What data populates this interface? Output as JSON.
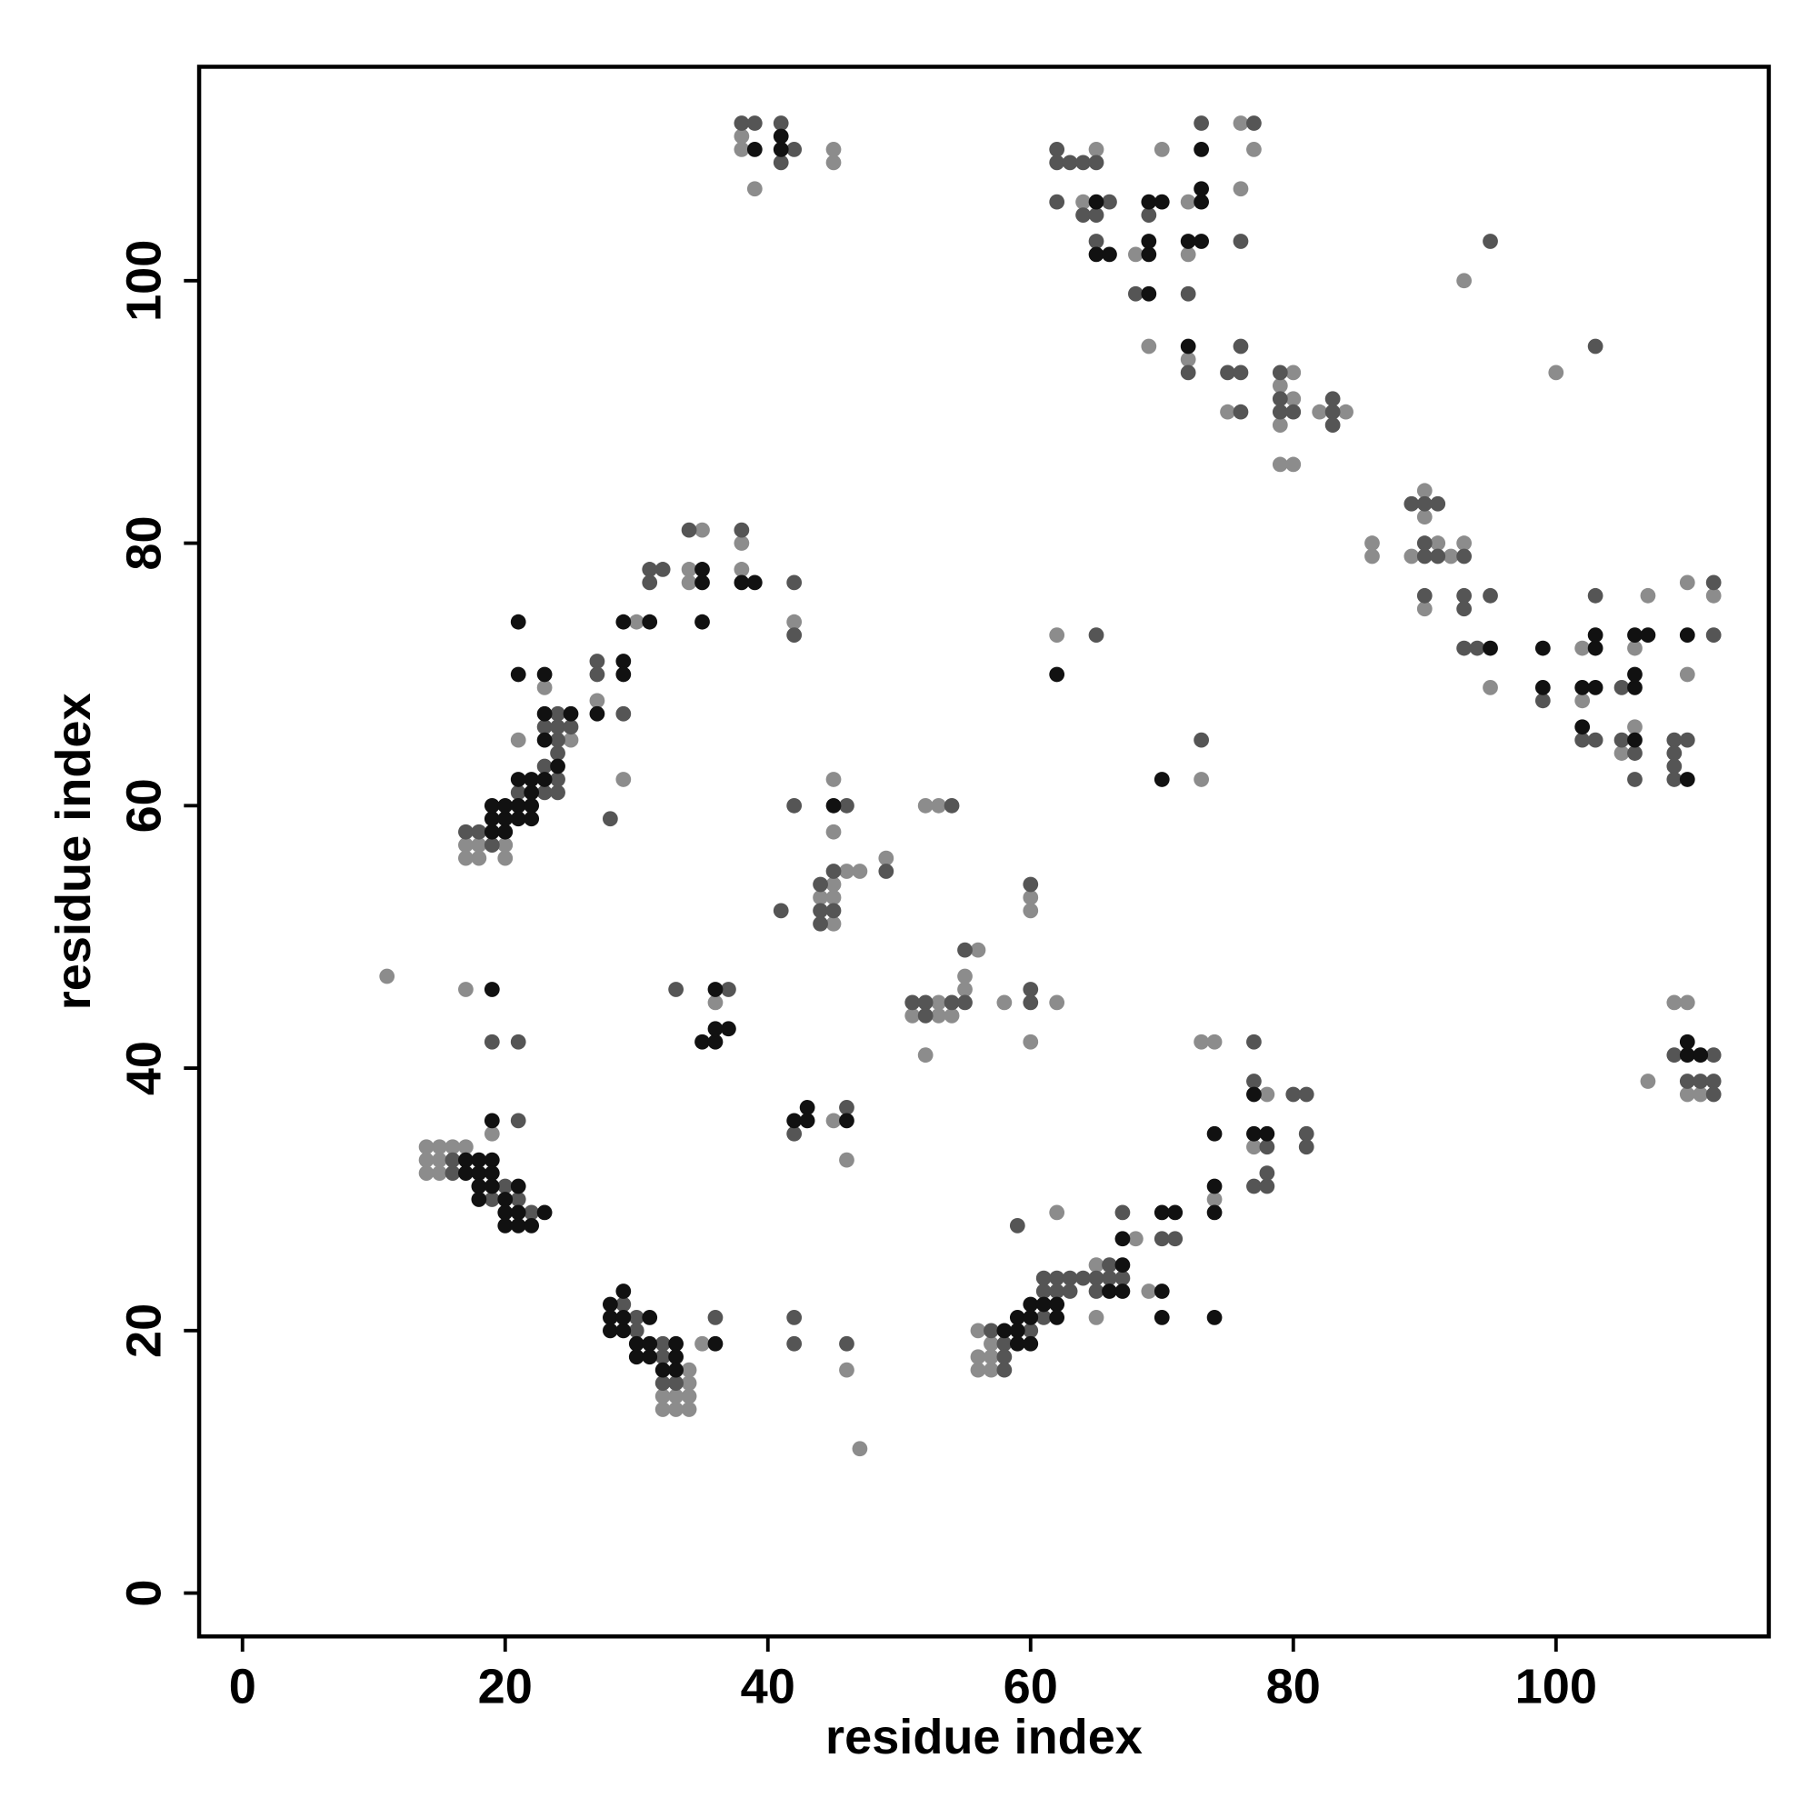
{
  "chart_data": {
    "type": "scatter",
    "xlabel": "residue index",
    "ylabel": "residue index",
    "xlim": [
      -3.3,
      116.2
    ],
    "ylim": [
      -3.3,
      116.3
    ],
    "xticks": [
      0,
      20,
      40,
      60,
      80,
      100
    ],
    "yticks": [
      0,
      20,
      40,
      60,
      80,
      100
    ],
    "grid": false,
    "series": [
      {
        "color": "#8c8c8c",
        "x": [
          38,
          38,
          39,
          45,
          45,
          65,
          64,
          68,
          70,
          72,
          76,
          76,
          77,
          72,
          69,
          72,
          75,
          80,
          79,
          80,
          79,
          79,
          80,
          82,
          84,
          93,
          100,
          86,
          86,
          90,
          90,
          91,
          89,
          92,
          93,
          90,
          95,
          102,
          102,
          105,
          106,
          106,
          107,
          110,
          110,
          112,
          109,
          110,
          110,
          111,
          107,
          17,
          18,
          17,
          18,
          20,
          20,
          25,
          23,
          21,
          27,
          29,
          30,
          35,
          34,
          34,
          38,
          38,
          42,
          11,
          17,
          36,
          45,
          45,
          46,
          47,
          44,
          45,
          45,
          45,
          49,
          52,
          53,
          52,
          53,
          51,
          53,
          54,
          55,
          55,
          56,
          58,
          60,
          60,
          60,
          62,
          62,
          73,
          14,
          15,
          16,
          17,
          14,
          15,
          14,
          15,
          19,
          34,
          34,
          32,
          33,
          34,
          32,
          33,
          34,
          35,
          46,
          47,
          45,
          46,
          56,
          56,
          56,
          57,
          57,
          57,
          65,
          65,
          68,
          69,
          74,
          62,
          73,
          74,
          77,
          78
        ],
        "values": [
          110,
          111,
          107,
          110,
          109,
          110,
          106,
          102,
          110,
          106,
          107,
          112,
          110,
          102,
          95,
          94,
          90,
          93,
          92,
          91,
          89,
          86,
          86,
          90,
          90,
          100,
          93,
          80,
          79,
          84,
          82,
          80,
          79,
          79,
          80,
          75,
          69,
          72,
          68,
          64,
          66,
          72,
          76,
          70,
          77,
          76,
          45,
          45,
          38,
          38,
          39,
          57,
          57,
          56,
          56,
          57,
          56,
          65,
          69,
          65,
          68,
          62,
          74,
          81,
          78,
          77,
          80,
          78,
          74,
          47,
          46,
          45,
          62,
          58,
          55,
          55,
          53,
          53,
          51,
          54,
          56,
          60,
          60,
          41,
          45,
          44,
          44,
          44,
          46,
          47,
          49,
          45,
          53,
          52,
          42,
          45,
          73,
          62,
          34,
          34,
          34,
          34,
          33,
          33,
          32,
          32,
          35,
          17,
          16,
          15,
          15,
          15,
          14,
          14,
          14,
          19,
          17,
          11,
          36,
          33,
          20,
          18,
          17,
          19,
          18,
          17,
          25,
          21,
          27,
          23,
          30,
          29,
          42,
          42,
          34,
          38
        ]
      },
      {
        "color": "#555555",
        "x": [
          38,
          39,
          41,
          42,
          41,
          62,
          62,
          63,
          64,
          65,
          62,
          66,
          64,
          65,
          65,
          69,
          73,
          76,
          77,
          68,
          72,
          72,
          75,
          76,
          76,
          76,
          79,
          79,
          79,
          80,
          83,
          83,
          83,
          95,
          103,
          89,
          90,
          91,
          90,
          90,
          91,
          93,
          90,
          93,
          93,
          95,
          93,
          94,
          99,
          103,
          102,
          103,
          105,
          105,
          106,
          106,
          109,
          109,
          109,
          109,
          110,
          112,
          112,
          109,
          112,
          110,
          111,
          112,
          112,
          17,
          18,
          19,
          21,
          23,
          23,
          24,
          24,
          24,
          23,
          24,
          24,
          24,
          25,
          27,
          27,
          29,
          28,
          31,
          32,
          31,
          34,
          38,
          42,
          42,
          19,
          21,
          33,
          37,
          41,
          42,
          46,
          44,
          45,
          44,
          45,
          44,
          49,
          54,
          51,
          52,
          54,
          52,
          55,
          55,
          60,
          60,
          60,
          65,
          73,
          16,
          16,
          20,
          19,
          21,
          22,
          21,
          29,
          30,
          30,
          32,
          32,
          32,
          33,
          36,
          42,
          42,
          46,
          42,
          46,
          57,
          58,
          58,
          58,
          60,
          61,
          61,
          61,
          62,
          62,
          63,
          63,
          64,
          65,
          65,
          66,
          66,
          67,
          67,
          70,
          71,
          59,
          77,
          77,
          78,
          77,
          78,
          78,
          80,
          81,
          81,
          81
        ],
        "values": [
          112,
          112,
          112,
          110,
          109,
          110,
          109,
          109,
          109,
          109,
          106,
          106,
          105,
          105,
          103,
          105,
          112,
          103,
          112,
          99,
          99,
          93,
          93,
          93,
          95,
          90,
          93,
          91,
          90,
          90,
          90,
          91,
          89,
          103,
          95,
          83,
          83,
          83,
          80,
          79,
          79,
          79,
          76,
          76,
          75,
          76,
          72,
          72,
          68,
          76,
          65,
          65,
          69,
          65,
          64,
          62,
          65,
          64,
          63,
          62,
          65,
          77,
          73,
          41,
          41,
          39,
          39,
          39,
          38,
          58,
          58,
          57,
          61,
          63,
          61,
          61,
          62,
          64,
          66,
          65,
          66,
          67,
          66,
          71,
          70,
          67,
          59,
          78,
          78,
          77,
          81,
          81,
          77,
          73,
          42,
          42,
          46,
          46,
          52,
          60,
          60,
          54,
          55,
          52,
          52,
          51,
          55,
          60,
          45,
          45,
          45,
          44,
          45,
          49,
          54,
          46,
          45,
          73,
          65,
          33,
          32,
          31,
          30,
          30,
          29,
          36,
          22,
          21,
          20,
          19,
          18,
          16,
          16,
          21,
          21,
          19,
          19,
          35,
          37,
          20,
          19,
          18,
          17,
          20,
          21,
          23,
          24,
          24,
          23,
          24,
          23,
          24,
          24,
          23,
          25,
          24,
          24,
          29,
          27,
          27,
          28,
          42,
          39,
          34,
          31,
          31,
          32,
          38,
          38,
          35,
          34
        ]
      },
      {
        "color": "#111111",
        "x": [
          39,
          41,
          41,
          65,
          65,
          66,
          69,
          69,
          69,
          70,
          73,
          73,
          73,
          72,
          73,
          69,
          72,
          95,
          99,
          99,
          102,
          103,
          103,
          103,
          102,
          106,
          106,
          106,
          106,
          107,
          110,
          110,
          110,
          110,
          111,
          19,
          19,
          19,
          20,
          20,
          20,
          21,
          21,
          22,
          22,
          22,
          22,
          21,
          23,
          24,
          23,
          23,
          25,
          23,
          21,
          21,
          27,
          29,
          29,
          29,
          31,
          35,
          35,
          35,
          38,
          39,
          19,
          36,
          35,
          36,
          36,
          37,
          45,
          62,
          70,
          17,
          18,
          19,
          17,
          18,
          19,
          18,
          19,
          21,
          18,
          20,
          20,
          21,
          23,
          20,
          21,
          22,
          19,
          28,
          29,
          28,
          28,
          29,
          29,
          31,
          30,
          31,
          30,
          31,
          33,
          33,
          32,
          33,
          36,
          42,
          43,
          43,
          46,
          58,
          59,
          59,
          59,
          60,
          60,
          60,
          61,
          62,
          62,
          66,
          67,
          67,
          67,
          70,
          70,
          70,
          71,
          74,
          74,
          74,
          74,
          77,
          77,
          78
        ],
        "values": [
          110,
          110,
          111,
          106,
          102,
          102,
          102,
          103,
          106,
          106,
          106,
          107,
          110,
          103,
          103,
          99,
          95,
          72,
          72,
          69,
          69,
          69,
          72,
          73,
          66,
          65,
          69,
          70,
          73,
          73,
          62,
          73,
          41,
          42,
          41,
          58,
          59,
          60,
          58,
          59,
          60,
          60,
          59,
          60,
          59,
          61,
          62,
          62,
          62,
          63,
          65,
          67,
          67,
          70,
          70,
          74,
          67,
          71,
          70,
          74,
          74,
          78,
          77,
          74,
          77,
          77,
          46,
          46,
          42,
          42,
          43,
          43,
          60,
          70,
          62,
          33,
          33,
          33,
          32,
          32,
          32,
          31,
          31,
          31,
          30,
          30,
          29,
          29,
          29,
          28,
          28,
          28,
          36,
          22,
          23,
          21,
          20,
          20,
          21,
          21,
          19,
          19,
          18,
          18,
          19,
          18,
          17,
          17,
          19,
          36,
          37,
          36,
          36,
          20,
          21,
          20,
          19,
          22,
          21,
          19,
          22,
          22,
          21,
          23,
          25,
          23,
          27,
          23,
          21,
          29,
          29,
          21,
          29,
          31,
          35,
          38,
          35,
          35
        ]
      }
    ]
  }
}
